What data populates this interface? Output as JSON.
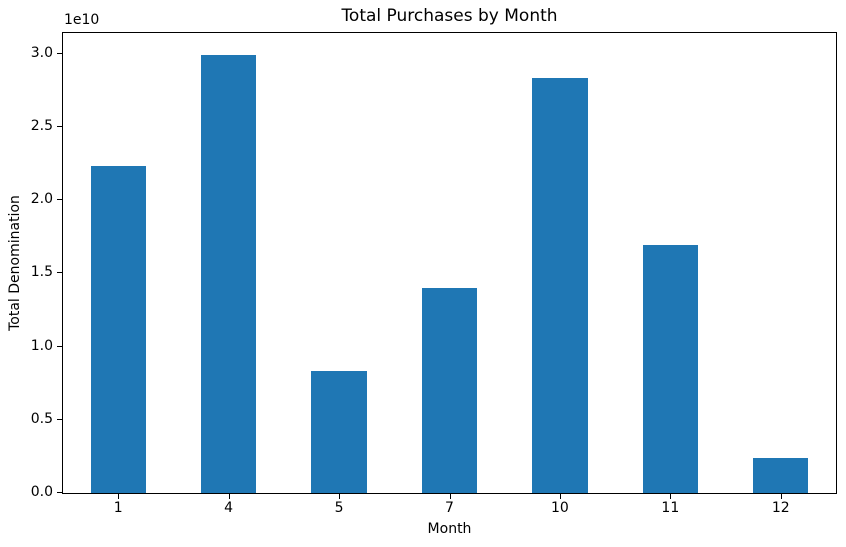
{
  "chart_data": {
    "type": "bar",
    "title": "Total Purchases by Month",
    "xlabel": "Month",
    "ylabel": "Total Denomination",
    "offset_text": "1e10",
    "categories": [
      "1",
      "4",
      "5",
      "7",
      "10",
      "11",
      "12"
    ],
    "values": [
      22300000000,
      29900000000,
      8300000000,
      14000000000,
      28300000000,
      16900000000,
      2400000000
    ],
    "bar_color": "#1f77b4",
    "ylim": [
      0,
      31400000000
    ],
    "yticks": [
      0,
      5000000000,
      10000000000,
      15000000000,
      20000000000,
      25000000000,
      30000000000
    ],
    "ytick_labels": [
      "0.0",
      "0.5",
      "1.0",
      "1.5",
      "2.0",
      "2.5",
      "3.0"
    ],
    "grid": false,
    "legend_position": "none",
    "bar_width_fraction": 0.5,
    "axis_color": "#000000",
    "text_color": "#000000",
    "background_color": "#ffffff"
  }
}
